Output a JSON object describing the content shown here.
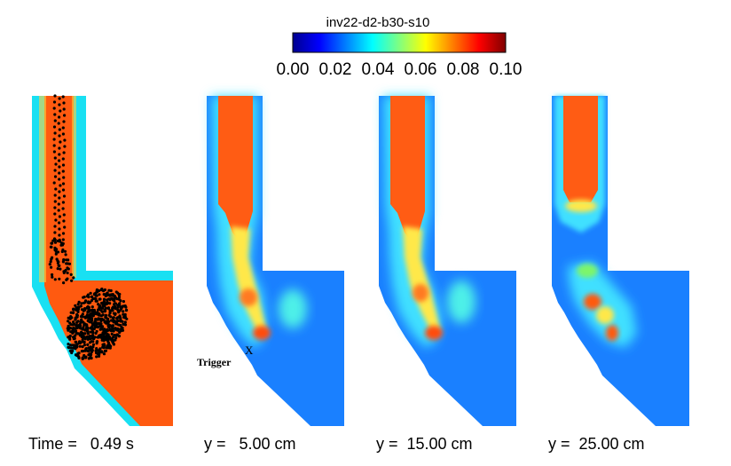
{
  "chart_data": {
    "type": "heatmap",
    "title": "inv22-d2-b30-s10",
    "colorbar": {
      "colormap": "jet",
      "range": [
        0.0,
        0.1
      ],
      "ticks": [
        "0.00",
        "0.02",
        "0.04",
        "0.06",
        "0.08",
        "0.10"
      ]
    },
    "panels": [
      {
        "label": "Time =   0.49 s",
        "view": "particles",
        "particles_shown": true
      },
      {
        "label": "y =   5.00 cm",
        "view": "gas-fraction",
        "annotation": {
          "marker": "X",
          "text": "Trigger"
        }
      },
      {
        "label": "y =  15.00 cm",
        "view": "gas-fraction"
      },
      {
        "label": "y =  25.00 cm",
        "view": "gas-fraction"
      }
    ],
    "colors": {
      "high": "#ff4500",
      "mid_high": "#ff8c00",
      "mid": "#ffff00",
      "mid_low": "#00ffff",
      "low": "#0055ff",
      "particles": "#000000"
    }
  }
}
